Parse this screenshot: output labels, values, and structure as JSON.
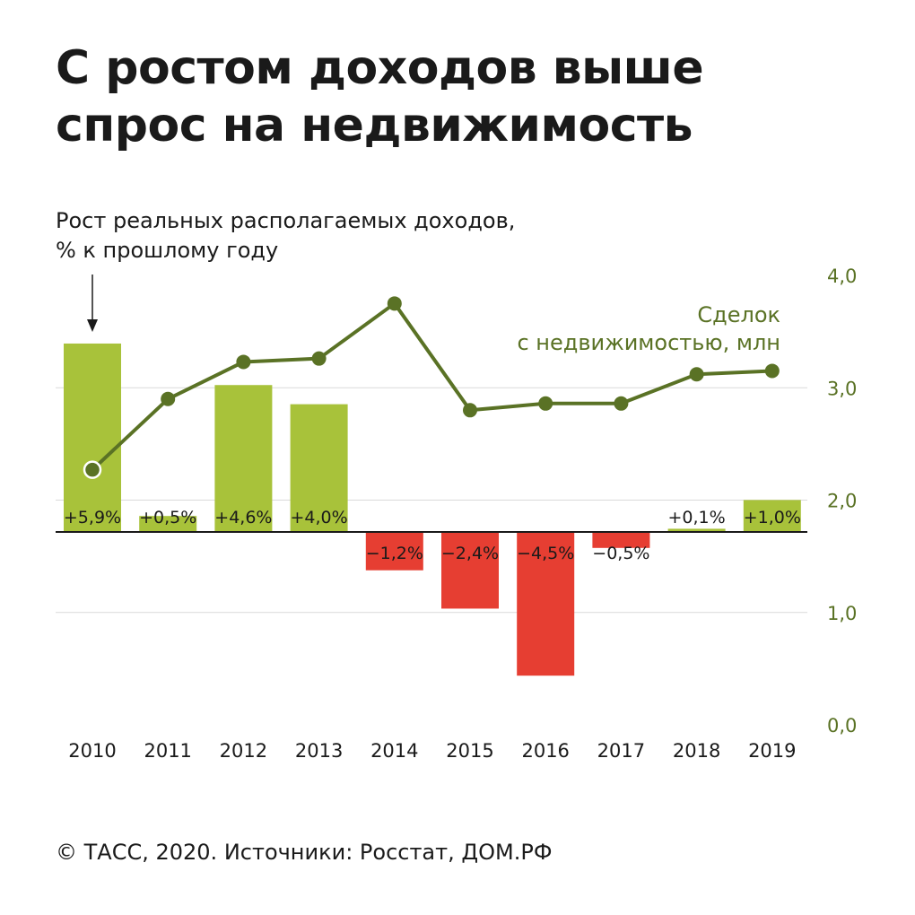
{
  "title_lines": [
    "С ростом доходов выше",
    "спрос на недвижимость"
  ],
  "income_label_lines": [
    "Рост реальных располагаемых доходов,",
    "% к прошлому году"
  ],
  "deals_label_lines": [
    "Сделок",
    "с недвижимостью, млн"
  ],
  "footer": "© ТАСС, 2020. Источники: Росстат, ДОМ.РФ",
  "colors": {
    "positive_bar": "#a8c23a",
    "negative_bar": "#e63e32",
    "line": "#5a7225",
    "axis_text": "#5a7225",
    "grid": "#d9d9d9"
  },
  "chart_data": {
    "type": "bar",
    "categories": [
      "2010",
      "2011",
      "2012",
      "2013",
      "2014",
      "2015",
      "2016",
      "2017",
      "2018",
      "2019"
    ],
    "series": [
      {
        "type": "bar",
        "values": [
          5.9,
          0.5,
          4.6,
          4.0,
          -1.2,
          -2.4,
          -4.5,
          -0.5,
          0.1,
          1.0
        ],
        "labels": [
          "+5,9%",
          "+0,5%",
          "+4,6%",
          "+4,0%",
          "−1,2%",
          "−2,4%",
          "−4,5%",
          "−0,5%",
          "+0,1%",
          "+1,0%"
        ]
      },
      {
        "type": "line",
        "values": [
          2.27,
          2.9,
          3.23,
          3.26,
          3.75,
          2.8,
          2.86,
          2.86,
          3.12,
          3.15
        ]
      }
    ],
    "y_right": {
      "ticks": [
        "0,0",
        "1,0",
        "2,0",
        "3,0",
        "4,0"
      ],
      "range": [
        0,
        4
      ]
    },
    "grid": true
  }
}
